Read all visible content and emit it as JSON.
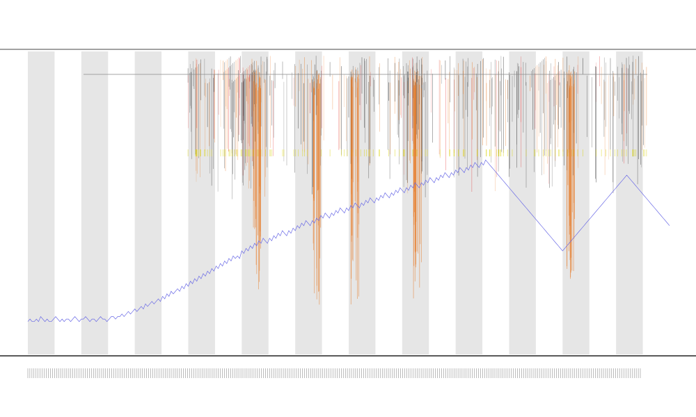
{
  "chart_data": {
    "type": "line",
    "title_lines": [
      "",
      "",
      ""
    ],
    "xlabel": "",
    "ylabel": "",
    "legend": {
      "placement": "top-left",
      "entries": []
    },
    "band_count": 24,
    "x_count": 300,
    "colors": {
      "line": "#6a6ae6",
      "orange": "#e8731a",
      "yellow": "#d8d200",
      "black": "#111111",
      "red": "#e33030",
      "band": "#e6e6e6",
      "axis": "#333333"
    },
    "series": [
      {
        "key": "line",
        "values": [
          2,
          3,
          2,
          2,
          3,
          2,
          4,
          3,
          2,
          3,
          2,
          2,
          3,
          4,
          3,
          2,
          3,
          2,
          3,
          3,
          2,
          3,
          4,
          3,
          2,
          3,
          3,
          4,
          3,
          2,
          3,
          3,
          2,
          3,
          4,
          3,
          3,
          2,
          3,
          4,
          4,
          3,
          4,
          4,
          5,
          4,
          5,
          6,
          5,
          6,
          7,
          6,
          7,
          8,
          7,
          9,
          8,
          9,
          10,
          9,
          10,
          11,
          10,
          12,
          11,
          13,
          12,
          14,
          13,
          14,
          15,
          14,
          16,
          15,
          17,
          16,
          18,
          17,
          19,
          18,
          20,
          19,
          21,
          20,
          22,
          21,
          23,
          22,
          24,
          23,
          25,
          24,
          26,
          25,
          27,
          26,
          28,
          27,
          28,
          27,
          30,
          29,
          31,
          30,
          32,
          31,
          33,
          32,
          34,
          33,
          35,
          34,
          33,
          35,
          34,
          36,
          35,
          37,
          36,
          38,
          37,
          36,
          38,
          37,
          39,
          38,
          40,
          39,
          41,
          40,
          42,
          41,
          40,
          42,
          41,
          43,
          42,
          44,
          43,
          45,
          44,
          43,
          45,
          44,
          46,
          45,
          47,
          46,
          45,
          47,
          46,
          48,
          47,
          49,
          48,
          47,
          49,
          48,
          50,
          49,
          51,
          50,
          49,
          51,
          50,
          52,
          51,
          53,
          52,
          51,
          53,
          52,
          54,
          53,
          55,
          54,
          53,
          55,
          54,
          56,
          55,
          57,
          56,
          55,
          57,
          56,
          58,
          57,
          59,
          58,
          57,
          59,
          58,
          60,
          59,
          61,
          60,
          59,
          61,
          60,
          62,
          61,
          63,
          62,
          61,
          63,
          62,
          64,
          63,
          65,
          64,
          63,
          65,
          64,
          66,
          65,
          64,
          63,
          62,
          61,
          60,
          59,
          58,
          57,
          56,
          55,
          54,
          53,
          52,
          51,
          50,
          49,
          48,
          47,
          46,
          45,
          44,
          43,
          42,
          41,
          40,
          39,
          38,
          37,
          36,
          35,
          34,
          33,
          32,
          31,
          30,
          31,
          32,
          33,
          34,
          35,
          36,
          37,
          38,
          39,
          40,
          41,
          42,
          43,
          44,
          45,
          46,
          47,
          48,
          49,
          50,
          51,
          52,
          53,
          54,
          55,
          56,
          57,
          58,
          59,
          60,
          59,
          58,
          57,
          56,
          55,
          54,
          53,
          52,
          51,
          50,
          49,
          48,
          47,
          46,
          45,
          44,
          43,
          42,
          41,
          40
        ]
      }
    ]
  }
}
